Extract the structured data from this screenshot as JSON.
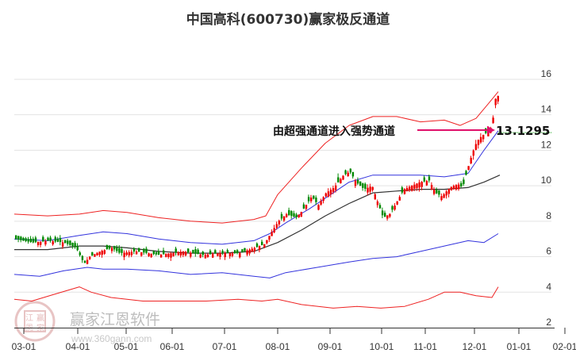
{
  "title": "中国高科(600730)赢家极反通道",
  "chart_data": {
    "type": "candlestick",
    "title": "中国高科(600730)赢家极反通道",
    "xlabel": "",
    "ylabel": "",
    "x_ticks": [
      "03-01",
      "04-01",
      "05-01",
      "06-01",
      "07-01",
      "08-01",
      "09-01",
      "10-01",
      "11-01",
      "12-01",
      "01-01",
      "02-01"
    ],
    "y_ticks": [
      2,
      4,
      6,
      8,
      10,
      12,
      14,
      16
    ],
    "ylim": [
      2,
      16.5
    ],
    "y_axis_position": "right",
    "grid": true,
    "annotation": {
      "text": "由超强通道进入强势通道",
      "value": "13.1295",
      "arrow_color": "#e0106a",
      "price_line_color": "#009900"
    },
    "series": [
      {
        "name": "outer-upper-band",
        "color": "#ee2222",
        "points": [
          [
            18,
            8.4
          ],
          [
            60,
            8.3
          ],
          [
            100,
            8.4
          ],
          [
            130,
            8.6
          ],
          [
            160,
            8.5
          ],
          [
            200,
            8.2
          ],
          [
            240,
            8.0
          ],
          [
            280,
            7.9
          ],
          [
            320,
            8.1
          ],
          [
            335,
            8.3
          ],
          [
            350,
            9.5
          ],
          [
            380,
            11.0
          ],
          [
            410,
            12.4
          ],
          [
            440,
            13.4
          ],
          [
            470,
            13.9
          ],
          [
            500,
            13.9
          ],
          [
            530,
            13.6
          ],
          [
            560,
            13.7
          ],
          [
            580,
            13.4
          ],
          [
            600,
            13.8
          ],
          [
            615,
            14.6
          ],
          [
            628,
            15.3
          ]
        ]
      },
      {
        "name": "inner-upper-band",
        "color": "#3333dd",
        "points": [
          [
            18,
            7.0
          ],
          [
            60,
            6.9
          ],
          [
            100,
            7.2
          ],
          [
            130,
            7.4
          ],
          [
            160,
            7.3
          ],
          [
            200,
            7.0
          ],
          [
            240,
            6.8
          ],
          [
            280,
            6.7
          ],
          [
            320,
            6.9
          ],
          [
            340,
            7.3
          ],
          [
            360,
            7.9
          ],
          [
            390,
            8.7
          ],
          [
            420,
            9.6
          ],
          [
            440,
            10.2
          ],
          [
            470,
            10.6
          ],
          [
            500,
            10.6
          ],
          [
            530,
            10.6
          ],
          [
            560,
            10.5
          ],
          [
            590,
            10.7
          ],
          [
            610,
            12.0
          ],
          [
            628,
            13.1
          ]
        ]
      },
      {
        "name": "middle-line",
        "color": "#333333",
        "points": [
          [
            18,
            6.4
          ],
          [
            60,
            6.4
          ],
          [
            100,
            6.6
          ],
          [
            130,
            6.6
          ],
          [
            160,
            6.5
          ],
          [
            200,
            6.3
          ],
          [
            240,
            6.2
          ],
          [
            280,
            6.2
          ],
          [
            320,
            6.3
          ],
          [
            350,
            6.8
          ],
          [
            380,
            7.5
          ],
          [
            410,
            8.3
          ],
          [
            440,
            9.0
          ],
          [
            470,
            9.6
          ],
          [
            500,
            9.7
          ],
          [
            530,
            9.8
          ],
          [
            560,
            9.8
          ],
          [
            590,
            9.9
          ],
          [
            610,
            10.2
          ],
          [
            630,
            10.6
          ]
        ]
      },
      {
        "name": "inner-lower-band",
        "color": "#3333dd",
        "points": [
          [
            18,
            5.0
          ],
          [
            50,
            4.9
          ],
          [
            80,
            5.2
          ],
          [
            110,
            5.4
          ],
          [
            130,
            5.3
          ],
          [
            160,
            5.3
          ],
          [
            200,
            5.2
          ],
          [
            240,
            5.0
          ],
          [
            280,
            5.1
          ],
          [
            320,
            4.9
          ],
          [
            340,
            4.8
          ],
          [
            360,
            5.1
          ],
          [
            400,
            5.4
          ],
          [
            440,
            5.7
          ],
          [
            470,
            5.9
          ],
          [
            500,
            6.0
          ],
          [
            530,
            6.3
          ],
          [
            560,
            6.6
          ],
          [
            590,
            6.9
          ],
          [
            610,
            6.8
          ],
          [
            628,
            7.3
          ]
        ]
      },
      {
        "name": "outer-lower-band",
        "color": "#ee2222",
        "points": [
          [
            18,
            3.6
          ],
          [
            40,
            3.5
          ],
          [
            70,
            3.9
          ],
          [
            100,
            4.3
          ],
          [
            115,
            4.0
          ],
          [
            140,
            3.7
          ],
          [
            180,
            3.5
          ],
          [
            220,
            3.5
          ],
          [
            260,
            3.5
          ],
          [
            300,
            3.6
          ],
          [
            330,
            3.5
          ],
          [
            350,
            3.6
          ],
          [
            380,
            3.3
          ],
          [
            420,
            3.1
          ],
          [
            450,
            3.2
          ],
          [
            480,
            3.1
          ],
          [
            510,
            3.2
          ],
          [
            540,
            3.6
          ],
          [
            560,
            4.0
          ],
          [
            580,
            4.0
          ],
          [
            600,
            3.8
          ],
          [
            620,
            3.7
          ],
          [
            628,
            4.3
          ]
        ]
      }
    ],
    "candles_summary": {
      "start_price_approx": 7.0,
      "low_approx": 5.3,
      "peak_approx": 16.0,
      "last_close_approx": 14.4,
      "up_color": "#ee0000",
      "down_color": "#008800"
    }
  },
  "watermark": {
    "brand": "赢家江恩软件",
    "url": "www.360gann.com",
    "seal_chars": [
      "江",
      "赢",
      "恩",
      "家"
    ]
  }
}
